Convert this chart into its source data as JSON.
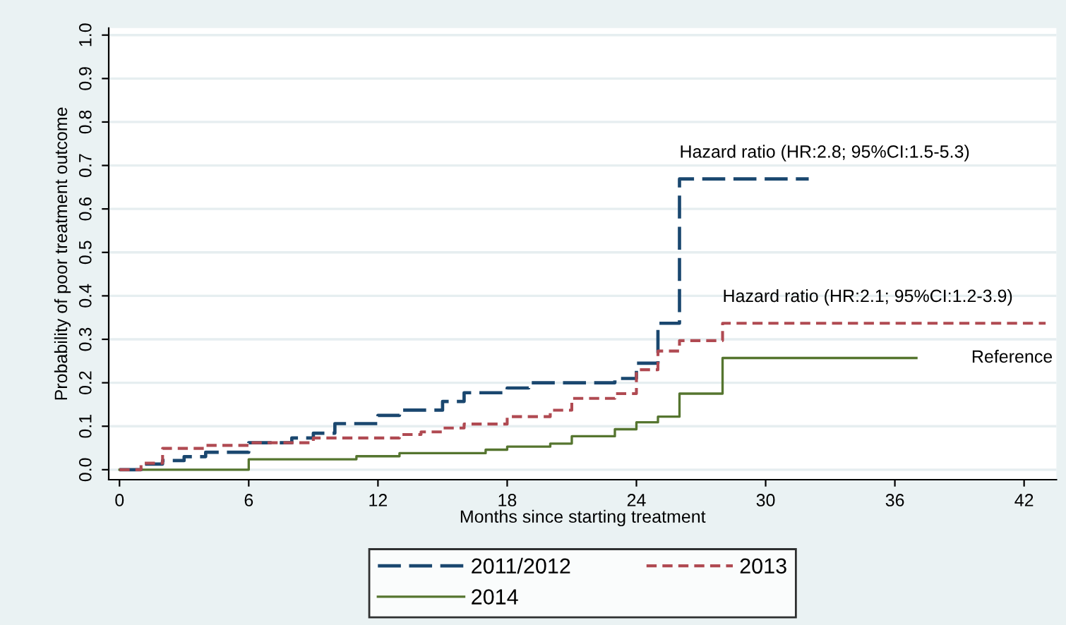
{
  "chart_data": {
    "type": "step",
    "xlabel": "Months since starting treatment",
    "ylabel": "Probability of poor treatment outcome",
    "xlim": [
      -0.5,
      43.5
    ],
    "xticks": [
      0,
      6,
      12,
      18,
      24,
      30,
      36,
      42
    ],
    "ylim": [
      -0.023,
      1.016
    ],
    "yticks": [
      {
        "value": 0,
        "label": "0.0"
      },
      {
        "value": 0.1,
        "label": "0.1"
      },
      {
        "value": 0.2,
        "label": "0.2"
      },
      {
        "value": 0.3,
        "label": "0.3"
      },
      {
        "value": 0.4,
        "label": "0.4"
      },
      {
        "value": 0.5,
        "label": "0.5"
      },
      {
        "value": 0.6,
        "label": "0.6"
      },
      {
        "value": 0.7,
        "label": "0.7"
      },
      {
        "value": 0.8,
        "label": "0.8"
      },
      {
        "value": 0.9,
        "label": "0.9"
      },
      {
        "value": 1.0,
        "label": "1.0"
      }
    ],
    "grid": "y",
    "legend": "bottom",
    "series": [
      {
        "name": "2011/2012",
        "color": "#1a476f",
        "line_style": "dashed",
        "x": [
          0,
          1,
          2,
          3,
          4,
          6,
          8,
          9,
          10,
          12,
          13,
          15,
          16,
          18,
          19,
          23,
          24,
          25,
          26,
          32
        ],
        "values": [
          0,
          0.013,
          0.021,
          0.03,
          0.04,
          0.062,
          0.073,
          0.084,
          0.106,
          0.125,
          0.137,
          0.157,
          0.177,
          0.188,
          0.2,
          0.21,
          0.245,
          0.337,
          0.669,
          0.669
        ]
      },
      {
        "name": "2013",
        "color": "#b04a52",
        "line_style": "dashed",
        "x": [
          0,
          1,
          2,
          4,
          6,
          9,
          13,
          14,
          15,
          16,
          18,
          20,
          21,
          23,
          24,
          25,
          26,
          28,
          43
        ],
        "values": [
          0,
          0.015,
          0.049,
          0.056,
          0.062,
          0.073,
          0.081,
          0.087,
          0.096,
          0.105,
          0.122,
          0.137,
          0.164,
          0.175,
          0.23,
          0.273,
          0.297,
          0.337,
          0.337
        ]
      },
      {
        "name": "2014",
        "color": "#55752f",
        "line_style": "solid",
        "x": [
          0,
          6,
          11,
          13,
          17,
          18,
          20,
          21,
          23,
          24,
          25,
          26,
          28,
          37
        ],
        "values": [
          0,
          0.024,
          0.031,
          0.038,
          0.046,
          0.053,
          0.06,
          0.077,
          0.093,
          0.109,
          0.122,
          0.175,
          0.257,
          0.257
        ]
      }
    ],
    "annotations": [
      "Hazard ratio (HR:2.8; 95%CI:1.5-5.3)",
      "Hazard ratio (HR:2.1; 95%CI:1.2-3.9)",
      "Reference"
    ]
  }
}
